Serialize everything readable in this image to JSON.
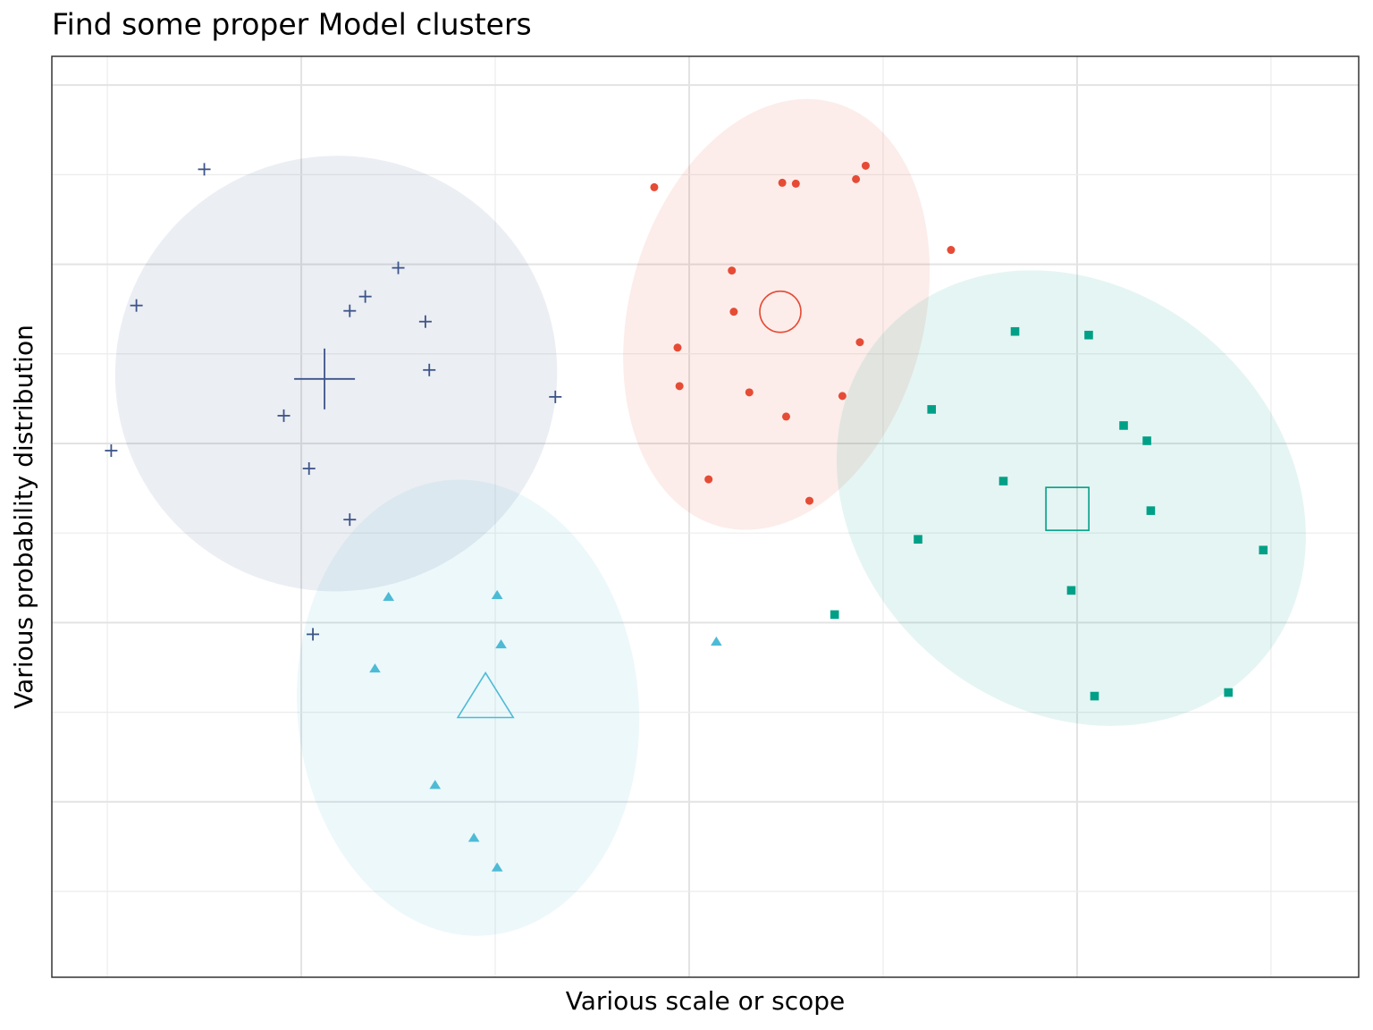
{
  "chart_data": {
    "type": "scatter",
    "title": "Find some proper Model clusters",
    "x_label": "Various scale or scope",
    "y_label": "Various probability distribution",
    "xlim": [
      -0.286,
      6.452
    ],
    "ylim": [
      -0.958,
      9.321
    ],
    "xticks": [
      1,
      3,
      5
    ],
    "xminor": [
      0,
      2,
      4,
      6
    ],
    "yticks": [
      1,
      3,
      5,
      7,
      9
    ],
    "yminor": [
      0,
      2,
      4,
      6,
      8
    ],
    "grid": true,
    "series": [
      {
        "marker": "plus",
        "color": "#3c5488",
        "x": [
          0.5,
          0.15,
          1.5,
          1.33,
          1.25,
          1.64,
          1.66,
          2.31,
          0.91,
          0.02,
          1.04,
          1.25,
          1.06
        ],
        "y": [
          8.06,
          6.54,
          6.96,
          6.64,
          6.48,
          6.36,
          5.82,
          5.52,
          5.31,
          4.92,
          4.72,
          4.15,
          2.87
        ],
        "centroid": {
          "x": 1.12,
          "y": 5.72
        },
        "ellipse": {
          "cx": 1.18,
          "cy": 5.78,
          "rx": 1.14,
          "ry": 2.43,
          "angle": -10
        }
      },
      {
        "marker": "circle",
        "color": "#e64b35",
        "x": [
          2.82,
          3.48,
          3.55,
          3.86,
          3.91,
          4.35,
          3.22,
          3.23,
          3.88,
          2.94,
          2.95,
          3.31,
          3.79,
          3.5,
          3.1,
          3.62
        ],
        "y": [
          7.86,
          7.91,
          7.9,
          7.95,
          8.1,
          7.16,
          6.93,
          6.47,
          6.13,
          6.07,
          5.64,
          5.57,
          5.53,
          5.3,
          4.6,
          4.36
        ],
        "centroid": {
          "x": 3.47,
          "y": 6.47
        },
        "ellipse": {
          "cx": 3.45,
          "cy": 6.44,
          "rx": 0.76,
          "ry": 2.45,
          "angle": 15
        }
      },
      {
        "marker": "square",
        "color": "#00a087",
        "x": [
          4.68,
          5.06,
          4.25,
          5.24,
          5.36,
          4.62,
          5.38,
          4.18,
          5.96,
          4.97,
          3.75,
          5.09,
          5.78
        ],
        "y": [
          6.25,
          6.21,
          5.38,
          5.2,
          5.03,
          4.58,
          4.25,
          3.93,
          3.81,
          3.36,
          3.09,
          2.18,
          2.22
        ],
        "centroid": {
          "x": 4.95,
          "y": 4.27
        },
        "ellipse": {
          "cx": 4.97,
          "cy": 4.39,
          "rx": 1.29,
          "ry": 2.35,
          "angle": 40
        }
      },
      {
        "marker": "triangle",
        "color": "#4dbbd5",
        "x": [
          1.45,
          2.01,
          2.03,
          1.38,
          3.14,
          1.69,
          1.89,
          2.01
        ],
        "y": [
          3.29,
          3.31,
          2.76,
          2.49,
          2.79,
          1.19,
          0.6,
          0.27
        ],
        "centroid": {
          "x": 1.95,
          "y": 2.17
        },
        "ellipse": {
          "cx": 1.86,
          "cy": 2.05,
          "rx": 0.88,
          "ry": 2.55,
          "angle": -5
        }
      }
    ]
  }
}
